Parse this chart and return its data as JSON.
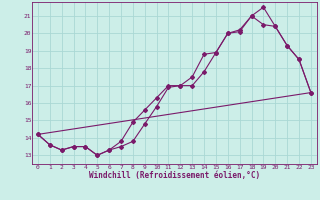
{
  "bg_color": "#cceee8",
  "grid_color": "#aad8d4",
  "line_color": "#7a1a6a",
  "xlabel": "Windchill (Refroidissement éolien,°C)",
  "xlim": [
    -0.5,
    23.5
  ],
  "ylim": [
    12.5,
    21.8
  ],
  "yticks": [
    13,
    14,
    15,
    16,
    17,
    18,
    19,
    20,
    21
  ],
  "xticks": [
    0,
    1,
    2,
    3,
    4,
    5,
    6,
    7,
    8,
    9,
    10,
    11,
    12,
    13,
    14,
    15,
    16,
    17,
    18,
    19,
    20,
    21,
    22,
    23
  ],
  "line1_x": [
    0,
    1,
    2,
    3,
    4,
    5,
    6,
    7,
    8,
    9,
    10,
    11,
    12,
    13,
    14,
    15,
    16,
    17,
    18,
    19,
    20,
    21,
    22,
    23
  ],
  "line1_y": [
    14.2,
    13.6,
    13.3,
    13.5,
    13.5,
    13.0,
    13.3,
    13.5,
    13.8,
    14.8,
    15.8,
    16.9,
    17.0,
    17.0,
    17.8,
    18.9,
    20.0,
    20.1,
    21.0,
    21.5,
    20.4,
    19.3,
    18.5,
    16.6
  ],
  "line2_x": [
    0,
    1,
    2,
    3,
    4,
    5,
    6,
    7,
    8,
    9,
    10,
    11,
    12,
    13,
    14,
    15,
    16,
    17,
    18,
    19,
    20,
    21,
    22,
    23
  ],
  "line2_y": [
    14.2,
    13.6,
    13.3,
    13.5,
    13.5,
    13.0,
    13.3,
    13.8,
    14.9,
    15.6,
    16.3,
    17.0,
    17.0,
    17.5,
    18.8,
    18.9,
    20.0,
    20.2,
    21.0,
    20.5,
    20.4,
    19.3,
    18.5,
    16.6
  ],
  "line3_x": [
    0,
    23
  ],
  "line3_y": [
    14.2,
    16.6
  ]
}
